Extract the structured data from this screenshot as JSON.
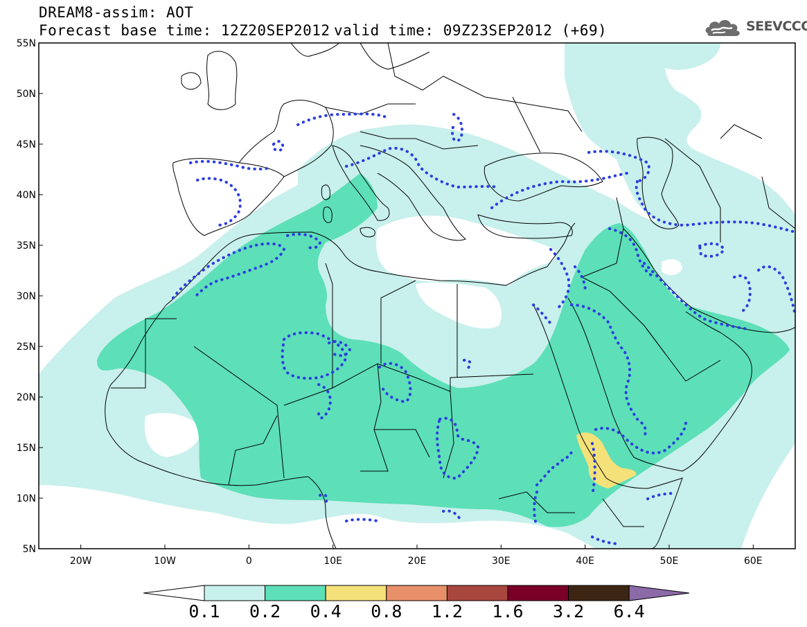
{
  "header": {
    "title": "DREAM8-assim: AOT",
    "base_time": "Forecast base time: 12Z20SEP2012",
    "valid_time": "valid time: 09Z23SEP2012 (+69)",
    "logo_text": "SEEVCCC",
    "logo_icon": "cloud-icon"
  },
  "map": {
    "lon_range": [
      -25,
      65
    ],
    "lat_range": [
      5,
      55
    ],
    "lat_labels": [
      "55N",
      "50N",
      "45N",
      "40N",
      "35N",
      "30N",
      "25N",
      "20N",
      "15N",
      "10N",
      "5N"
    ],
    "lon_labels": [
      "20W",
      "10W",
      "0",
      "10E",
      "20E",
      "30E",
      "40E",
      "50E",
      "60E"
    ],
    "dotted_contour_color": "#2c3ee0",
    "coastline_color": "#000000"
  },
  "colorbar": {
    "levels": [
      "0.1",
      "0.2",
      "0.4",
      "0.8",
      "1.2",
      "1.6",
      "3.2",
      "6.4"
    ],
    "colors": [
      "#ffffff",
      "#c8f0ec",
      "#5ddfb8",
      "#f5e17a",
      "#e8906a",
      "#a8473e",
      "#7a0028",
      "#3d2514",
      "#8c6aa8"
    ]
  }
}
